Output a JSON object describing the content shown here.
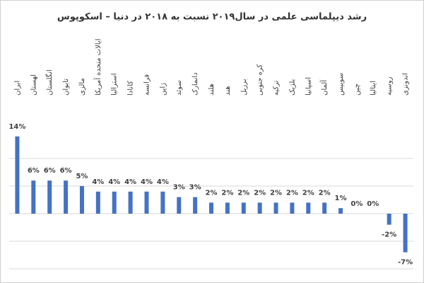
{
  "chart_data": {
    "type": "bar",
    "title": "رشد دیپلماسی علمی در سال۲۰۱۹ نسبت به ۲۰۱۸ در دنیا – اسکوپوس",
    "categories": [
      "ایران",
      "لهستان",
      "انگلستان",
      "تایوان",
      "مالزی",
      "ایالات متحده آمریکا",
      "استرالیا",
      "کانادا",
      "فرانسه",
      "ژاپن",
      "سوئد",
      "دانمارک",
      "هلند",
      "هند",
      "برزیل",
      "کره جنوبی",
      "ترکیه",
      "بلژیک",
      "اسپانیا",
      "آلمان",
      "سوییس",
      "چین",
      "ایتالیا",
      "روسیه",
      "اندونزی"
    ],
    "values": [
      14,
      6,
      6,
      6,
      5,
      4,
      4,
      4,
      4,
      4,
      3,
      3,
      2,
      2,
      2,
      2,
      2,
      2,
      2,
      2,
      1,
      0,
      0,
      -2,
      -7
    ],
    "value_labels": [
      "14%",
      "6%",
      "6%",
      "6%",
      "5%",
      "4%",
      "4%",
      "4%",
      "4%",
      "4%",
      "3%",
      "3%",
      "2%",
      "2%",
      "2%",
      "2%",
      "2%",
      "2%",
      "2%",
      "2%",
      "1%",
      "0%",
      "0%",
      "-2%",
      "-7%"
    ],
    "color": "#4472c4",
    "ylim": [
      -10,
      15
    ],
    "yticks": [
      -10,
      -5,
      0,
      5,
      10
    ],
    "grid": true
  }
}
